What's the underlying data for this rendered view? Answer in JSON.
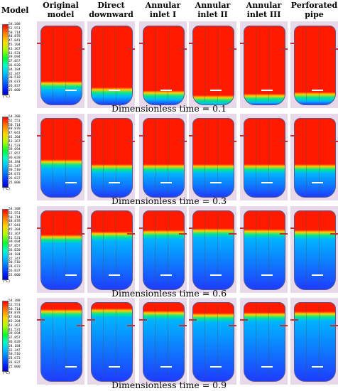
{
  "header": {
    "row_label": "Model",
    "columns": [
      "Original\nmodel",
      "Direct\ndownward",
      "Annular\ninlet I",
      "Annular\ninlet II",
      "Annular\ninlet III",
      "Perforated\npipe"
    ]
  },
  "legend": {
    "ticks": [
      "54.388",
      "52.551",
      "50.714",
      "48.878",
      "47.041",
      "45.204",
      "43.367",
      "41.531",
      "39.694",
      "37.857",
      "36.020",
      "34.184",
      "32.347",
      "30.510",
      "28.673",
      "26.837",
      "25.000"
    ],
    "unit": "(°C)"
  },
  "rows": [
    {
      "caption": "Dimensionless time = 0.1"
    },
    {
      "caption": "Dimensionless time = 0.3"
    },
    {
      "caption": "Dimensionless time = 0.6"
    },
    {
      "caption": "Dimensionless time = 0.9"
    }
  ],
  "colors": {
    "hot": "#ff1a00",
    "warm": "#ffd000",
    "mid": "#00e890",
    "cool": "#00b4ff",
    "cold": "#1e3cff",
    "panel_bg": "#e8d9ea"
  }
}
